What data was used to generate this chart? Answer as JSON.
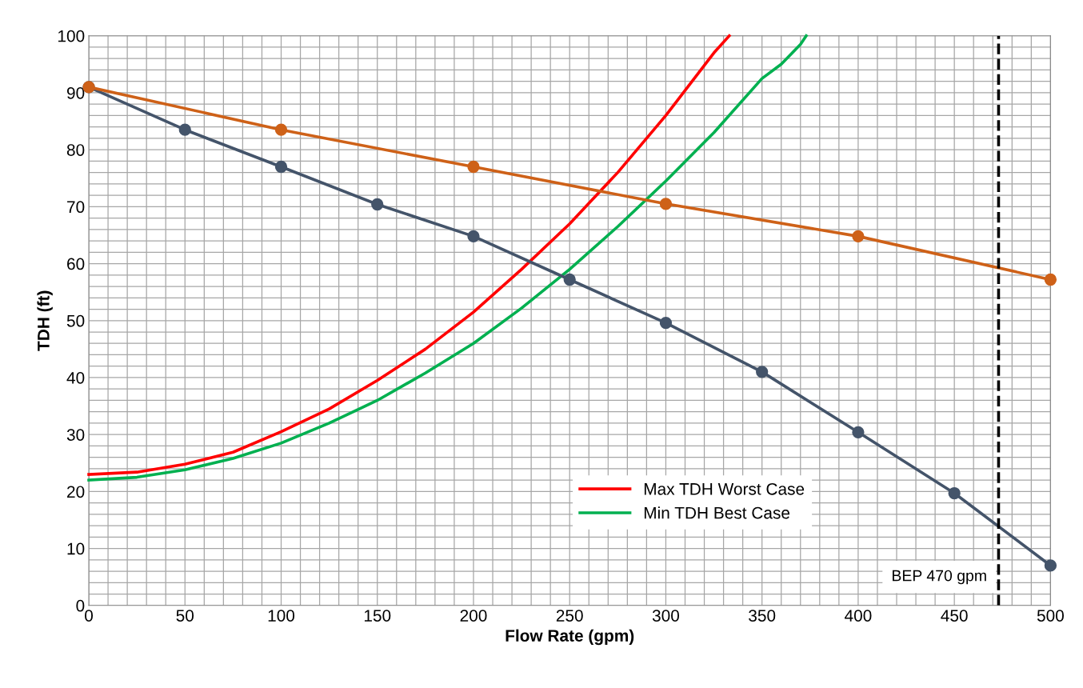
{
  "chart_data": {
    "type": "line",
    "xlabel": "Flow Rate (gpm)",
    "ylabel": "TDH (ft)",
    "xlim": [
      0,
      500
    ],
    "ylim": [
      0,
      100
    ],
    "xticks": [
      0,
      {
        "value": 10,
        "label": null
      },
      {
        "value": 20,
        "label": null
      },
      {
        "value": 30,
        "label": null
      },
      {
        "value": 40,
        "label": null
      },
      50,
      {
        "value": 60,
        "label": null
      },
      {
        "value": 70,
        "label": null
      },
      {
        "value": 80,
        "label": null
      },
      {
        "value": 90,
        "label": null
      },
      100,
      {
        "value": 110,
        "label": null
      },
      {
        "value": 120,
        "label": null
      },
      {
        "value": 130,
        "label": null
      },
      {
        "value": 140,
        "label": null
      },
      150,
      {
        "value": 160,
        "label": null
      },
      {
        "value": 170,
        "label": null
      },
      {
        "value": 180,
        "label": null
      },
      {
        "value": 190,
        "label": null
      },
      200,
      {
        "value": 210,
        "label": null
      },
      {
        "value": 220,
        "label": null
      },
      {
        "value": 230,
        "label": null
      },
      {
        "value": 240,
        "label": null
      },
      250,
      {
        "value": 260,
        "label": null
      },
      {
        "value": 270,
        "label": null
      },
      {
        "value": 280,
        "label": null
      },
      {
        "value": 290,
        "label": null
      },
      300,
      {
        "value": 310,
        "label": null
      },
      {
        "value": 320,
        "label": null
      },
      {
        "value": 330,
        "label": null
      },
      {
        "value": 340,
        "label": null
      },
      350,
      {
        "value": 360,
        "label": null
      },
      {
        "value": 370,
        "label": null
      },
      {
        "value": 380,
        "label": null
      },
      {
        "value": 390,
        "label": null
      },
      400,
      {
        "value": 410,
        "label": null
      },
      {
        "value": 420,
        "label": null
      },
      {
        "value": 430,
        "label": null
      },
      {
        "value": 440,
        "label": null
      },
      450,
      {
        "value": 460,
        "label": null
      },
      {
        "value": 470,
        "label": null
      },
      {
        "value": 480,
        "label": null
      },
      {
        "value": 490,
        "label": null
      },
      500
    ],
    "yticks": [
      0,
      {
        "value": 2,
        "label": null
      },
      {
        "value": 4,
        "label": null
      },
      {
        "value": 6,
        "label": null
      },
      {
        "value": 8,
        "label": null
      },
      10,
      {
        "value": 12,
        "label": null
      },
      {
        "value": 14,
        "label": null
      },
      {
        "value": 16,
        "label": null
      },
      {
        "value": 18,
        "label": null
      },
      20,
      {
        "value": 22,
        "label": null
      },
      {
        "value": 24,
        "label": null
      },
      {
        "value": 26,
        "label": null
      },
      {
        "value": 28,
        "label": null
      },
      30,
      {
        "value": 32,
        "label": null
      },
      {
        "value": 34,
        "label": null
      },
      {
        "value": 36,
        "label": null
      },
      {
        "value": 38,
        "label": null
      },
      40,
      {
        "value": 42,
        "label": null
      },
      {
        "value": 44,
        "label": null
      },
      {
        "value": 46,
        "label": null
      },
      {
        "value": 48,
        "label": null
      },
      50,
      {
        "value": 52,
        "label": null
      },
      {
        "value": 54,
        "label": null
      },
      {
        "value": 56,
        "label": null
      },
      {
        "value": 58,
        "label": null
      },
      60,
      {
        "value": 62,
        "label": null
      },
      {
        "value": 64,
        "label": null
      },
      {
        "value": 66,
        "label": null
      },
      {
        "value": 68,
        "label": null
      },
      70,
      {
        "value": 72,
        "label": null
      },
      {
        "value": 74,
        "label": null
      },
      {
        "value": 76,
        "label": null
      },
      {
        "value": 78,
        "label": null
      },
      80,
      {
        "value": 82,
        "label": null
      },
      {
        "value": 84,
        "label": null
      },
      {
        "value": 86,
        "label": null
      },
      {
        "value": 88,
        "label": null
      },
      90,
      {
        "value": 92,
        "label": null
      },
      {
        "value": 94,
        "label": null
      },
      {
        "value": 96,
        "label": null
      },
      {
        "value": 98,
        "label": null
      },
      100
    ],
    "grid": true,
    "legend": "bottom right",
    "series": [
      {
        "name": "Max TDH Worst Case",
        "color": "#ff0000",
        "marker": "none",
        "x": [
          0,
          25,
          50,
          75,
          100,
          125,
          150,
          175,
          200,
          225,
          250,
          275,
          300,
          325,
          333
        ],
        "values": [
          23,
          23.4,
          24.8,
          26.9,
          30.5,
          34.5,
          39.5,
          45,
          51.5,
          59,
          67,
          76,
          86,
          97,
          100
        ]
      },
      {
        "name": "Min TDH Best Case",
        "color": "#00b050",
        "marker": "none",
        "x": [
          0,
          25,
          50,
          75,
          100,
          125,
          150,
          175,
          200,
          225,
          250,
          275,
          300,
          325,
          350,
          360,
          370,
          373
        ],
        "values": [
          22,
          22.5,
          23.8,
          25.8,
          28.5,
          32,
          36,
          40.8,
          46,
          52.2,
          59,
          66.5,
          74.5,
          83,
          92.5,
          95,
          98.5,
          100
        ]
      },
      {
        "color": "#44546a",
        "marker": "circle",
        "x": [
          0,
          50,
          100,
          150,
          200,
          250,
          300,
          350,
          400,
          450,
          500
        ],
        "values": [
          91,
          83.5,
          77,
          70.4,
          64.8,
          57.2,
          49.6,
          41,
          30.4,
          19.7,
          7
        ]
      },
      {
        "color": "#ce6118",
        "marker": "circle",
        "x": [
          0,
          100,
          200,
          300,
          400,
          500
        ],
        "values": [
          91,
          83.5,
          77,
          70.5,
          64.8,
          57.2
        ]
      }
    ],
    "ref_lines": [
      {
        "axis": "x",
        "value": 473,
        "label": "BEP 470 gpm",
        "color": "#000000",
        "line_style": "dashed"
      }
    ]
  }
}
